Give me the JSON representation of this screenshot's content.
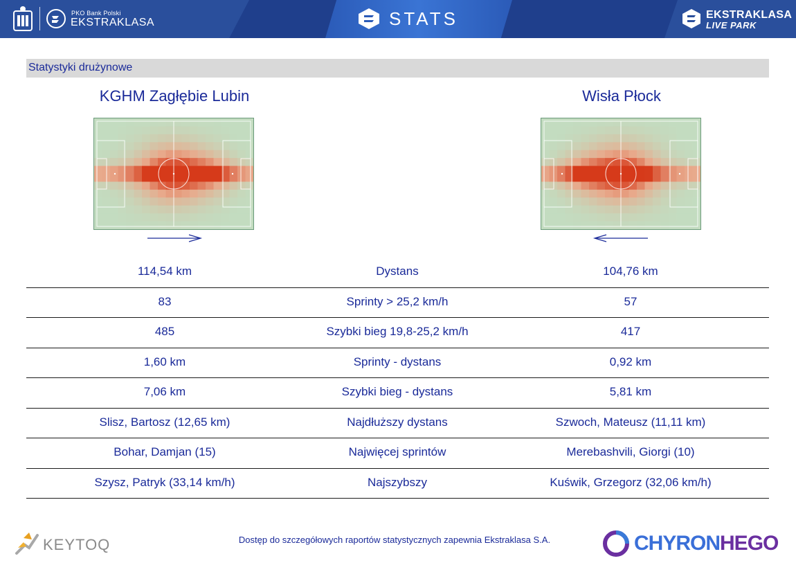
{
  "header": {
    "brand_small": "PKO Bank Polski",
    "brand_name": "EKSTRAKLASA",
    "stats_title": "STATS",
    "live_park_line1": "EKSTRAKLASA",
    "live_park_line2": "LIVE PARK"
  },
  "section": {
    "title": "Statystyki drużynowe"
  },
  "teams": {
    "home": "KGHM Zagłębie Lubin",
    "away": "Wisła Płock"
  },
  "stats": [
    {
      "home": "114,54 km",
      "label": "Dystans",
      "away": "104,76 km"
    },
    {
      "home": "83",
      "label": "Sprinty > 25,2 km/h",
      "away": "57"
    },
    {
      "home": "485",
      "label": "Szybki bieg 19,8-25,2 km/h",
      "away": "417"
    },
    {
      "home": "1,60 km",
      "label": "Sprinty - dystans",
      "away": "0,92 km"
    },
    {
      "home": "7,06 km",
      "label": "Szybki bieg - dystans",
      "away": "5,81 km"
    },
    {
      "home": "Slisz, Bartosz (12,65 km)",
      "label": "Najdłuższy dystans",
      "away": "Szwoch, Mateusz (11,11 km)"
    },
    {
      "home": "Bohar, Damjan (15)",
      "label": "Najwięcej sprintów",
      "away": "Merebashvili, Giorgi (10)"
    },
    {
      "home": "Szysz, Patryk (33,14 km/h)",
      "label": "Najszybszy",
      "away": "Kuświk, Grzegorz (32,06 km/h)"
    }
  ],
  "footer": {
    "keytoq": "KEYTOQ",
    "note": "Dostęp do szczegółowych raportów statystycznych zapewnia Ekstraklasa S.A.",
    "chyron_a": "CHYRON",
    "chyron_b": "HEGO"
  },
  "colors": {
    "header_bg": "#1f3f8c",
    "text_blue": "#1a2a99",
    "section_bg": "#d9d9d9",
    "pitch_green": "#c3dcc0",
    "heat_red": "#d63a1a"
  },
  "icons": {
    "pko": "pko-logo-icon",
    "ekstraklasa": "ekstraklasa-ball-icon",
    "stats": "stats-e-icon",
    "live_park": "live-park-icon",
    "keytoq": "keytoq-logo-icon",
    "chyron": "chyronhego-logo-icon"
  }
}
